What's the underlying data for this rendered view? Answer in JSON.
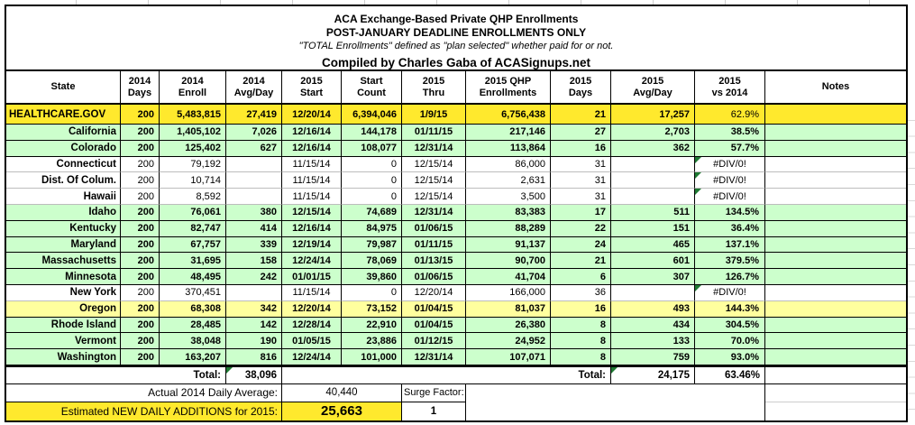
{
  "title": {
    "line1": "ACA Exchange-Based Private QHP Enrollments",
    "line2": "POST-JANUARY DEADLINE ENROLLMENTS ONLY",
    "line3": "\"TOTAL Enrollments\" defined as \"plan selected\" whether paid for or not.",
    "line4": "Compiled by Charles Gaba of ACASignups.net"
  },
  "columns": [
    "State",
    "2014\nDays",
    "2014\nEnroll",
    "2014\nAvg/Day",
    "2015\nStart",
    "Start\nCount",
    "2015\nThru",
    "2015 QHP\nEnrollments",
    "2015\nDays",
    "2015\nAvg/Day",
    "2015\nvs 2014",
    "Notes"
  ],
  "rows": [
    {
      "state": "HEALTHCARE.GOV",
      "days14": "200",
      "enroll14": "5,483,815",
      "avg14": "27,419",
      "start15": "12/20/14",
      "start_count": "6,394,046",
      "thru15": "1/9/15",
      "qhp15": "6,756,438",
      "days15": "21",
      "avg15": "17,257",
      "vs": "62.9%",
      "notes": "",
      "style": "yellow",
      "err": false
    },
    {
      "state": "California",
      "days14": "200",
      "enroll14": "1,405,102",
      "avg14": "7,026",
      "start15": "12/16/14",
      "start_count": "144,178",
      "thru15": "01/11/15",
      "qhp15": "217,146",
      "days15": "27",
      "avg15": "2,703",
      "vs": "38.5%",
      "notes": "",
      "style": "green",
      "err": false
    },
    {
      "state": "Colorado",
      "days14": "200",
      "enroll14": "125,402",
      "avg14": "627",
      "start15": "12/16/14",
      "start_count": "108,077",
      "thru15": "12/31/14",
      "qhp15": "113,864",
      "days15": "16",
      "avg15": "362",
      "vs": "57.7%",
      "notes": "",
      "style": "green",
      "err": false
    },
    {
      "state": "Connecticut",
      "days14": "200",
      "enroll14": "79,192",
      "avg14": "",
      "start15": "11/15/14",
      "start_count": "0",
      "thru15": "12/15/14",
      "qhp15": "86,000",
      "days15": "31",
      "avg15": "",
      "vs": "#DIV/0!",
      "notes": "",
      "style": "white",
      "err": true
    },
    {
      "state": "Dist. Of Colum.",
      "days14": "200",
      "enroll14": "10,714",
      "avg14": "",
      "start15": "11/15/14",
      "start_count": "0",
      "thru15": "12/15/14",
      "qhp15": "2,631",
      "days15": "31",
      "avg15": "",
      "vs": "#DIV/0!",
      "notes": "",
      "style": "white",
      "err": true
    },
    {
      "state": "Hawaii",
      "days14": "200",
      "enroll14": "8,592",
      "avg14": "",
      "start15": "11/15/14",
      "start_count": "0",
      "thru15": "12/15/14",
      "qhp15": "3,500",
      "days15": "31",
      "avg15": "",
      "vs": "#DIV/0!",
      "notes": "",
      "style": "white",
      "err": true
    },
    {
      "state": "Idaho",
      "days14": "200",
      "enroll14": "76,061",
      "avg14": "380",
      "start15": "12/15/14",
      "start_count": "74,689",
      "thru15": "12/31/14",
      "qhp15": "83,383",
      "days15": "17",
      "avg15": "511",
      "vs": "134.5%",
      "notes": "",
      "style": "green",
      "err": false
    },
    {
      "state": "Kentucky",
      "days14": "200",
      "enroll14": "82,747",
      "avg14": "414",
      "start15": "12/16/14",
      "start_count": "84,975",
      "thru15": "01/06/15",
      "qhp15": "88,289",
      "days15": "22",
      "avg15": "151",
      "vs": "36.4%",
      "notes": "",
      "style": "green",
      "err": false
    },
    {
      "state": "Maryland",
      "days14": "200",
      "enroll14": "67,757",
      "avg14": "339",
      "start15": "12/19/14",
      "start_count": "79,987",
      "thru15": "01/11/15",
      "qhp15": "91,137",
      "days15": "24",
      "avg15": "465",
      "vs": "137.1%",
      "notes": "",
      "style": "green",
      "err": false
    },
    {
      "state": "Massachusetts",
      "days14": "200",
      "enroll14": "31,695",
      "avg14": "158",
      "start15": "12/24/14",
      "start_count": "78,069",
      "thru15": "01/13/15",
      "qhp15": "90,700",
      "days15": "21",
      "avg15": "601",
      "vs": "379.5%",
      "notes": "",
      "style": "green",
      "err": false
    },
    {
      "state": "Minnesota",
      "days14": "200",
      "enroll14": "48,495",
      "avg14": "242",
      "start15": "01/01/15",
      "start_count": "39,860",
      "thru15": "01/06/15",
      "qhp15": "41,704",
      "days15": "6",
      "avg15": "307",
      "vs": "126.7%",
      "notes": "",
      "style": "green",
      "err": false
    },
    {
      "state": "New York",
      "days14": "200",
      "enroll14": "370,451",
      "avg14": "",
      "start15": "11/15/14",
      "start_count": "0",
      "thru15": "12/20/14",
      "qhp15": "166,000",
      "days15": "36",
      "avg15": "",
      "vs": "#DIV/0!",
      "notes": "",
      "style": "white",
      "err": true
    },
    {
      "state": "Oregon",
      "days14": "200",
      "enroll14": "68,308",
      "avg14": "342",
      "start15": "12/20/14",
      "start_count": "73,152",
      "thru15": "01/04/15",
      "qhp15": "81,037",
      "days15": "16",
      "avg15": "493",
      "vs": "144.3%",
      "notes": "",
      "style": "paleyellow",
      "err": false
    },
    {
      "state": "Rhode Island",
      "days14": "200",
      "enroll14": "28,485",
      "avg14": "142",
      "start15": "12/28/14",
      "start_count": "22,910",
      "thru15": "01/04/15",
      "qhp15": "26,380",
      "days15": "8",
      "avg15": "434",
      "vs": "304.5%",
      "notes": "",
      "style": "green",
      "err": false
    },
    {
      "state": "Vermont",
      "days14": "200",
      "enroll14": "38,048",
      "avg14": "190",
      "start15": "01/05/15",
      "start_count": "23,886",
      "thru15": "01/12/15",
      "qhp15": "24,952",
      "days15": "8",
      "avg15": "133",
      "vs": "70.0%",
      "notes": "",
      "style": "green",
      "err": false
    },
    {
      "state": "Washington",
      "days14": "200",
      "enroll14": "163,207",
      "avg14": "816",
      "start15": "12/24/14",
      "start_count": "101,000",
      "thru15": "12/31/14",
      "qhp15": "107,071",
      "days15": "8",
      "avg15": "759",
      "vs": "93.0%",
      "notes": "",
      "style": "green",
      "err": false
    }
  ],
  "totals": {
    "label_left": "Total:",
    "total_2014_avg_day": "38,096",
    "label_right": "Total:",
    "total_2015_avg_day": "24,175",
    "total_vs_2014": "63.46%"
  },
  "footer": {
    "daily_avg_label": "Actual 2014 Daily Average:",
    "daily_avg_value": "40,440",
    "surge_label": "Surge Factor:",
    "surge_value": "1",
    "estimate_label": "Estimated NEW DAILY ADDITIONS for 2015:",
    "estimate_value": "25,663"
  },
  "colors": {
    "highlight_yellow": "#ffe92d",
    "row_green": "#ccffcc",
    "row_pale_yellow": "#ffff9e",
    "error_flag_green": "#1f7a33"
  }
}
